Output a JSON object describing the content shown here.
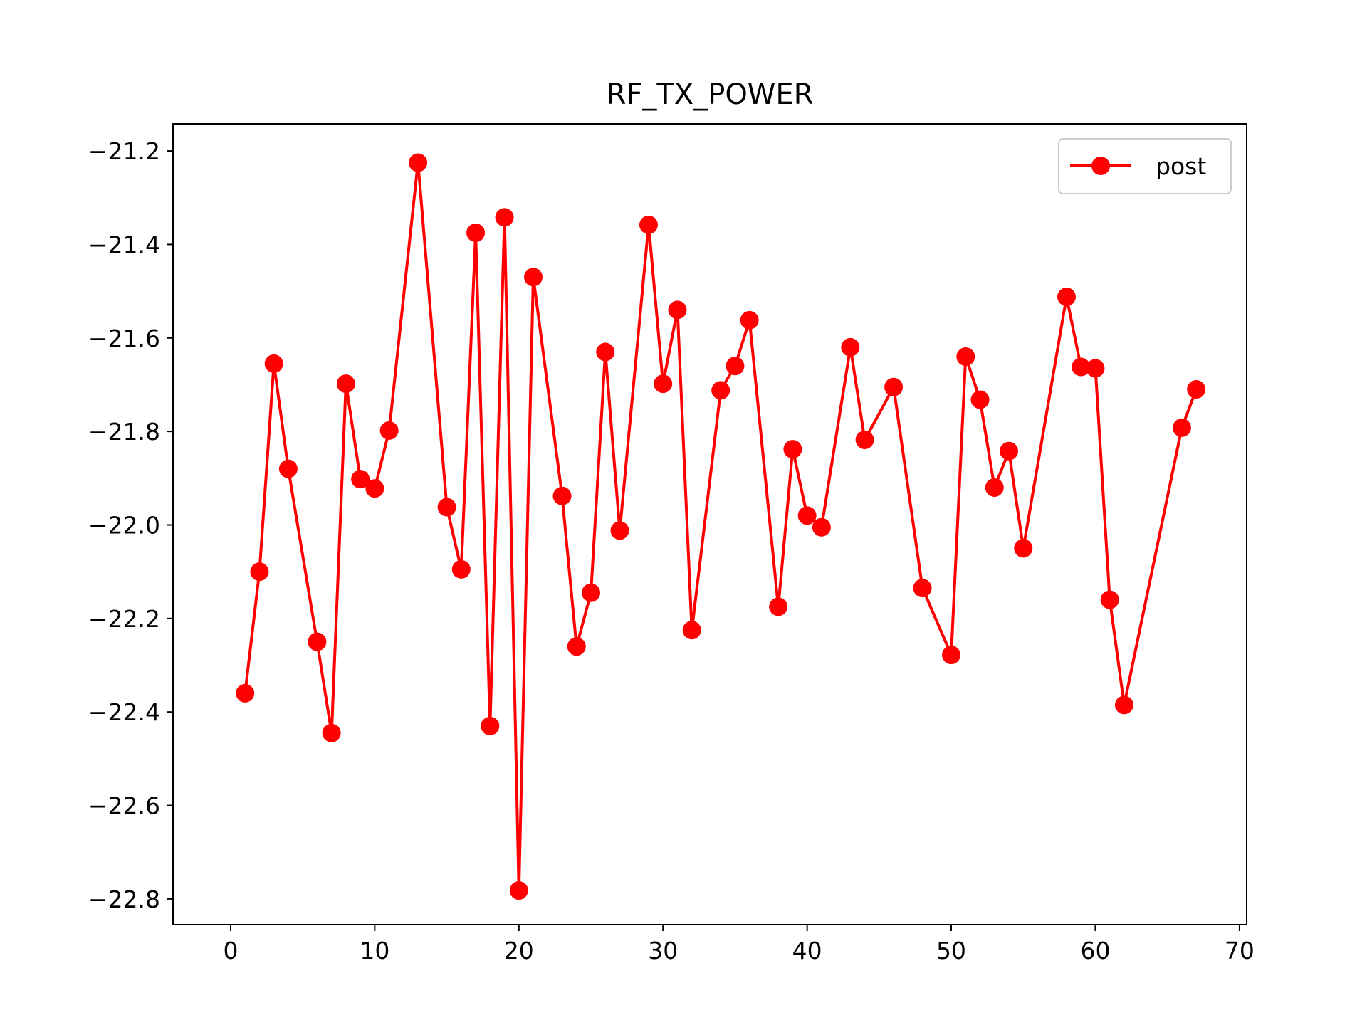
{
  "chart_data": {
    "type": "line",
    "title": "RF_TX_POWER",
    "xlabel": "",
    "ylabel": "",
    "xlim": [
      -4,
      70.5
    ],
    "ylim": [
      -22.855,
      -21.142
    ],
    "xticks": [
      0,
      10,
      20,
      30,
      40,
      50,
      60,
      70
    ],
    "xtick_labels": [
      "0",
      "10",
      "20",
      "30",
      "40",
      "50",
      "60",
      "70"
    ],
    "yticks": [
      -21.2,
      -21.4,
      -21.6,
      -21.8,
      -22.0,
      -22.2,
      -22.4,
      -22.6,
      -22.8
    ],
    "ytick_labels": [
      "−21.2",
      "−21.4",
      "−21.6",
      "−21.8",
      "−22.0",
      "−22.2",
      "−22.4",
      "−22.6",
      "−22.8"
    ],
    "grid": false,
    "legend_position": "top-right",
    "series": [
      {
        "name": "post",
        "color": "#ff0000",
        "marker": "circle",
        "x": [
          1,
          2,
          3,
          4,
          6,
          7,
          8,
          9,
          10,
          11,
          13,
          15,
          16,
          17,
          18,
          19,
          20,
          21,
          23,
          24,
          25,
          26,
          27,
          29,
          30,
          31,
          32,
          34,
          35,
          36,
          38,
          39,
          40,
          41,
          43,
          44,
          46,
          48,
          50,
          51,
          52,
          53,
          54,
          55,
          58,
          59,
          60,
          61,
          62,
          66,
          67
        ],
        "y": [
          -22.36,
          -22.1,
          -21.655,
          -21.88,
          -22.25,
          -22.445,
          -21.698,
          -21.902,
          -21.922,
          -21.798,
          -21.225,
          -21.962,
          -22.095,
          -21.375,
          -22.43,
          -21.342,
          -22.782,
          -21.47,
          -21.938,
          -22.26,
          -22.145,
          -21.63,
          -22.012,
          -21.358,
          -21.698,
          -21.54,
          -22.225,
          -21.712,
          -21.66,
          -21.562,
          -22.175,
          -21.838,
          -21.98,
          -22.005,
          -21.62,
          -21.818,
          -21.705,
          -22.135,
          -22.278,
          -21.64,
          -21.732,
          -21.92,
          -21.842,
          -22.05,
          -21.512,
          -21.662,
          -21.665,
          -22.16,
          -22.385,
          -21.792,
          -21.71
        ]
      }
    ]
  }
}
